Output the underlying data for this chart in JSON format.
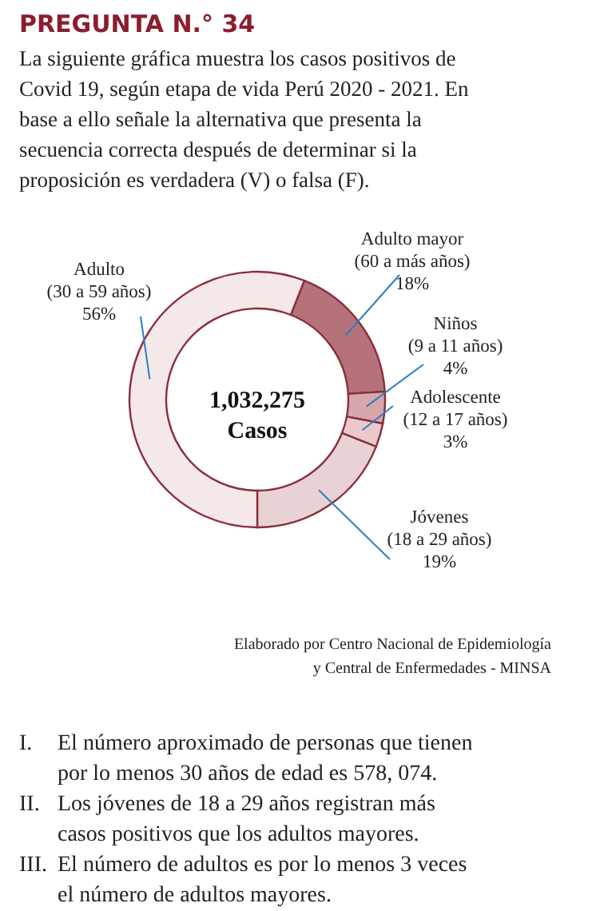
{
  "chart_data": {
    "type": "donut",
    "title": "PREGUNTA N.° 34",
    "subtitle": "La siguiente gráfica muestra los casos positivos de Covid 19, según etapa de vida Perú 2020 - 2021. En base a ello señale la alternativa que presenta la secuencia correcta después de determinar si la proposición es verdadera (V) o falsa (F).",
    "categories": [
      "Adulto mayor\n(60 a más años)",
      "Niños\n(9 a 11 años)",
      "Adolescente\n(12 a 17 años)",
      "Jóvenes\n(18 a 29 años)",
      "Adulto\n(30 a 59 años)"
    ],
    "values": [
      18,
      4,
      3,
      19,
      56
    ],
    "value_labels": [
      "18%",
      "4%",
      "3%",
      "19%",
      "56%"
    ],
    "colors": [
      "#b5727a",
      "#d6a7ab",
      "#e9c9cc",
      "#e9d2d4",
      "#f4e8e9"
    ],
    "annotations": [
      "1,032,275\nCasos",
      "Elaborado por Centro Nacional de Epidemiología\ny Central de Enfermedades - MINSA",
      "I. El número aproximado de personas que tienen por lo menos 30 años de edad es 578, 074.",
      "II. Los jóvenes de 18 a 29 años registran más casos positivos que los adultos mayores.",
      "III. El número de adultos es por lo menos 3 veces el número de adultos mayores."
    ]
  }
}
